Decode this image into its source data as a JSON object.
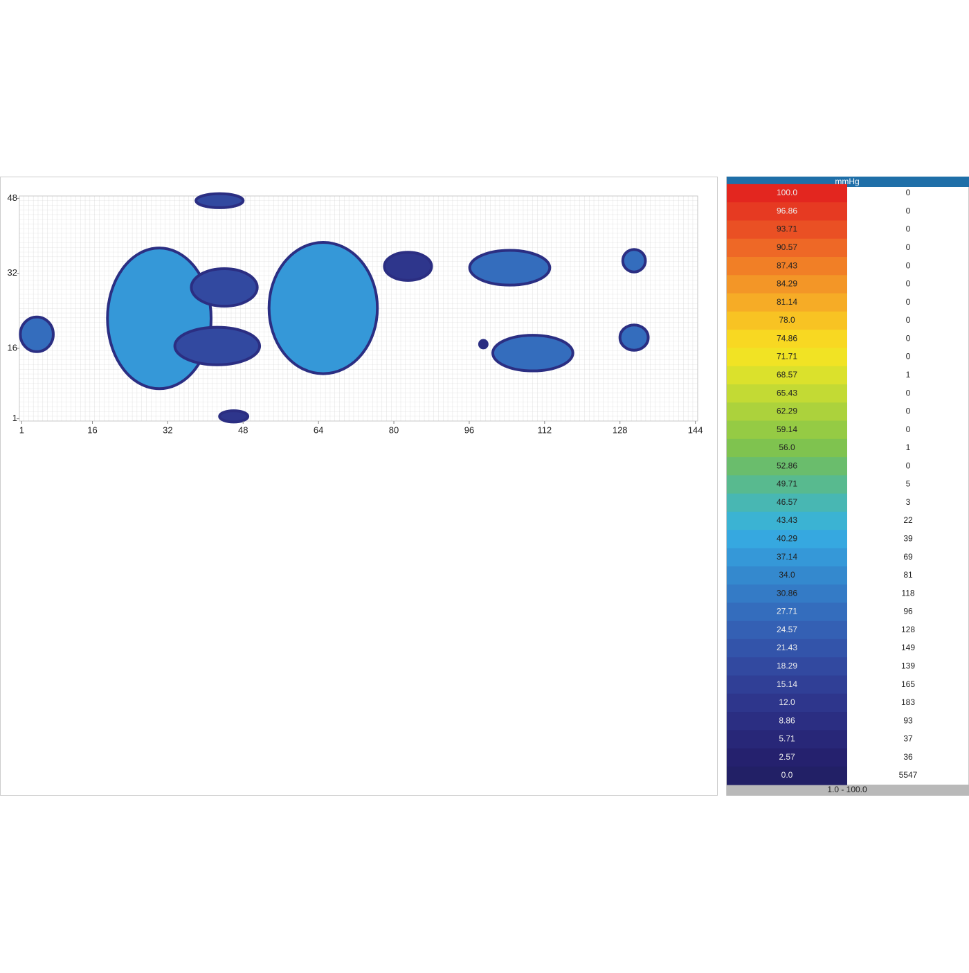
{
  "chart_data": {
    "type": "heatmap",
    "xlim": [
      1,
      144
    ],
    "ylim": [
      1,
      48
    ],
    "xticks": [
      1,
      16,
      32,
      48,
      64,
      80,
      96,
      112,
      128,
      144
    ],
    "yticks": [
      1,
      16,
      32,
      48
    ],
    "blobs": [
      {
        "x": 4.2,
        "y": 19,
        "rx": 3.5,
        "ry": 3.7,
        "value": 30
      },
      {
        "x": 30.2,
        "y": 22.4,
        "rx": 11,
        "ry": 15,
        "value": 38
      },
      {
        "x": 42.5,
        "y": 16.5,
        "rx": 9,
        "ry": 4,
        "value": 20
      },
      {
        "x": 44,
        "y": 29,
        "rx": 7,
        "ry": 4,
        "value": 20
      },
      {
        "x": 65,
        "y": 24.6,
        "rx": 11.5,
        "ry": 14,
        "value": 38
      },
      {
        "x": 83,
        "y": 33.5,
        "rx": 5,
        "ry": 3,
        "value": 15
      },
      {
        "x": 43,
        "y": 47.5,
        "rx": 5,
        "ry": 1.5,
        "value": 20
      },
      {
        "x": 46,
        "y": 1.5,
        "rx": 3,
        "ry": 1.2,
        "value": 12
      },
      {
        "x": 104.6,
        "y": 33.2,
        "rx": 8.5,
        "ry": 3.7,
        "value": 28
      },
      {
        "x": 109.5,
        "y": 15,
        "rx": 8.5,
        "ry": 3.8,
        "value": 28
      },
      {
        "x": 99,
        "y": 16.9,
        "rx": 0.8,
        "ry": 0.8,
        "value": 10
      },
      {
        "x": 131,
        "y": 34.7,
        "rx": 2.4,
        "ry": 2.4,
        "value": 30
      },
      {
        "x": 131,
        "y": 18.3,
        "rx": 3,
        "ry": 2.7,
        "value": 30
      }
    ],
    "legend": {
      "title": "mmHg",
      "range": "1.0 - 100.0",
      "levels": [
        {
          "value": 100,
          "label": "100.0"
        },
        96.86,
        93.71,
        90.57,
        87.43,
        84.29,
        81.14,
        {
          "value": 78,
          "label": "78.0"
        },
        74.86,
        71.71,
        68.57,
        65.43,
        62.29,
        59.14,
        {
          "value": 56,
          "label": "56.0"
        },
        52.86,
        49.71,
        46.57,
        43.43,
        40.29,
        37.14,
        {
          "value": 34,
          "label": "34.0"
        },
        30.86,
        27.71,
        24.57,
        21.43,
        18.29,
        15.14,
        {
          "value": 12,
          "label": "12.0"
        },
        8.86,
        5.71,
        2.57,
        {
          "value": 0,
          "label": "0.0"
        }
      ],
      "counts": [
        0,
        0,
        0,
        0,
        0,
        0,
        0,
        0,
        0,
        0,
        1,
        0,
        0,
        0,
        1,
        0,
        5,
        3,
        22,
        39,
        69,
        81,
        118,
        96,
        128,
        149,
        139,
        165,
        183,
        93,
        37,
        36,
        5547
      ],
      "colors": [
        "#e3261f",
        "#e63a22",
        "#ea5024",
        "#ee6826",
        "#f17f26",
        "#f39627",
        "#f6ac26",
        "#f8c323",
        "#f8d822",
        "#f1e324",
        "#dbe12c",
        "#c3da34",
        "#acd23c",
        "#95cb44",
        "#7fc34f",
        "#6abd6c",
        "#58ba8f",
        "#48b7b3",
        "#3bb3d3",
        "#36a8e0",
        "#3598d8",
        "#3489ce",
        "#347bc6",
        "#346dbd",
        "#3460b4",
        "#3354aa",
        "#3249a0",
        "#303f96",
        "#2e368c",
        "#2b2e82",
        "#282778",
        "#25216e",
        "#222066"
      ]
    }
  }
}
